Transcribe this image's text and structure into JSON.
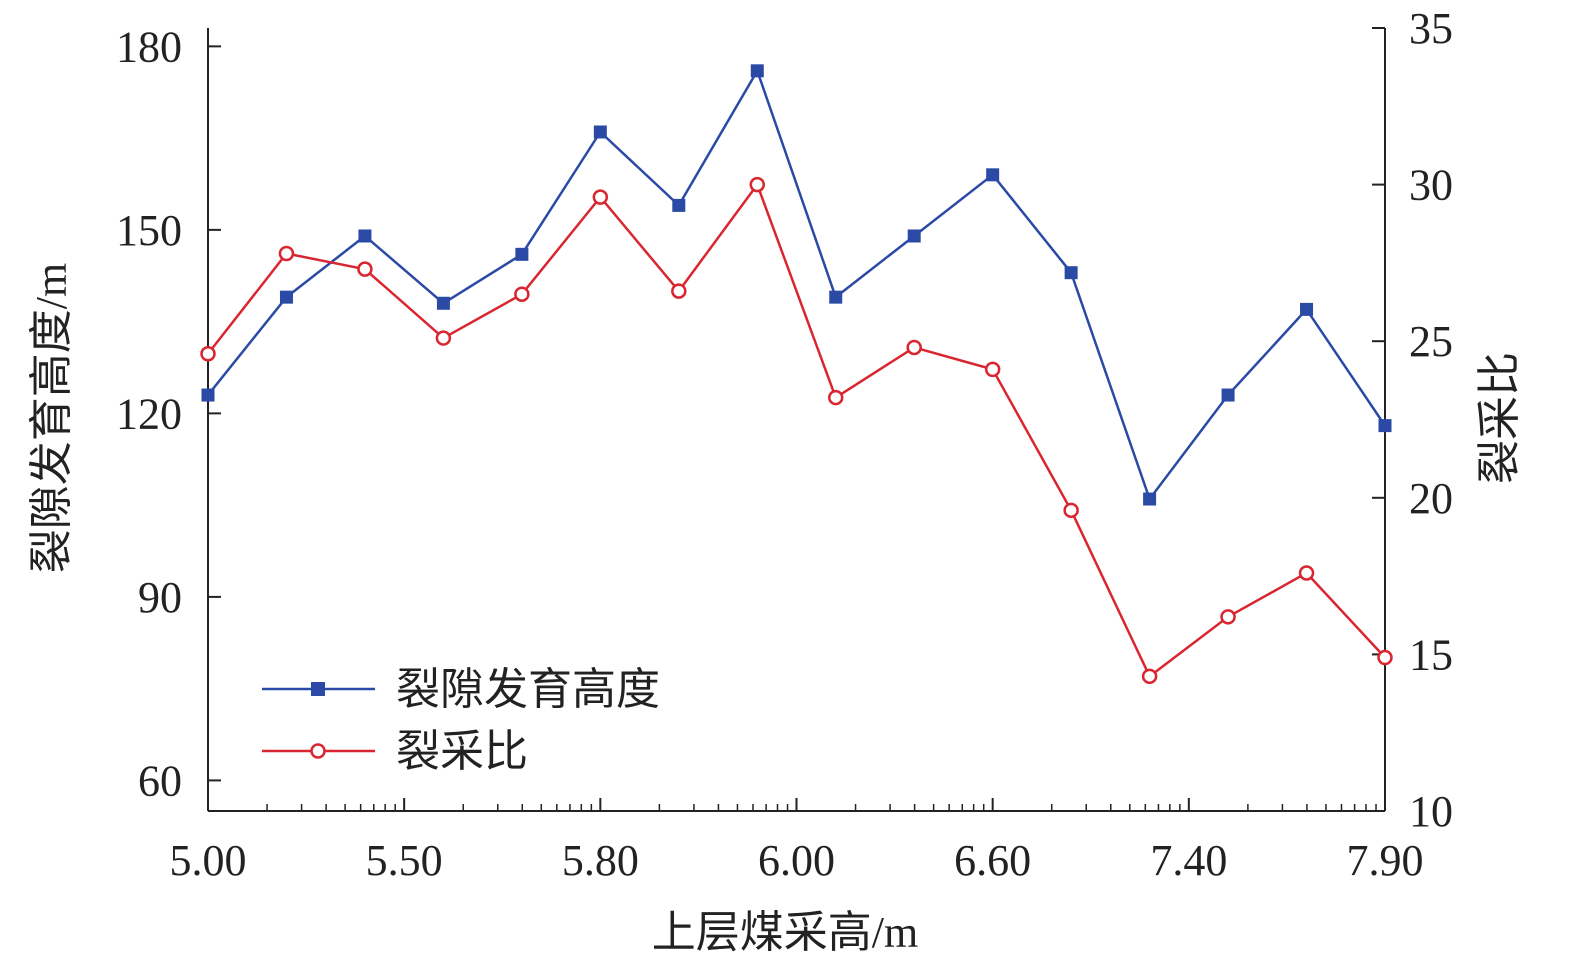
{
  "chart_data": {
    "type": "line",
    "xlabel": "上层煤采高/m",
    "ylabel_left": "裂隙发育高度/m",
    "ylabel_right": "裂采比",
    "x_ticks": [
      "5.00",
      "5.50",
      "5.80",
      "6.00",
      "6.60",
      "7.40",
      "7.90"
    ],
    "y_left_ticks": [
      "60",
      "90",
      "120",
      "150",
      "180"
    ],
    "y_right_ticks": [
      "10",
      "15",
      "20",
      "25",
      "30",
      "35"
    ],
    "ylim_left": [
      55,
      183
    ],
    "ylim_right": [
      10,
      35
    ],
    "grid": false,
    "legend_position": "bottom-left",
    "series": [
      {
        "name": "裂隙发育高度",
        "axis": "left",
        "color": "#2b4aa6",
        "marker": "filled-square",
        "values": [
          123,
          139,
          149,
          138,
          146,
          166,
          154,
          176,
          139,
          149,
          159,
          143,
          106,
          123,
          137,
          118
        ]
      },
      {
        "name": "裂采比",
        "axis": "right",
        "color": "#d92630",
        "marker": "open-circle",
        "values": [
          24.6,
          27.8,
          27.3,
          25.1,
          26.5,
          29.6,
          26.6,
          30.0,
          23.2,
          24.8,
          24.1,
          19.6,
          14.3,
          16.2,
          17.6,
          14.9
        ]
      }
    ]
  }
}
